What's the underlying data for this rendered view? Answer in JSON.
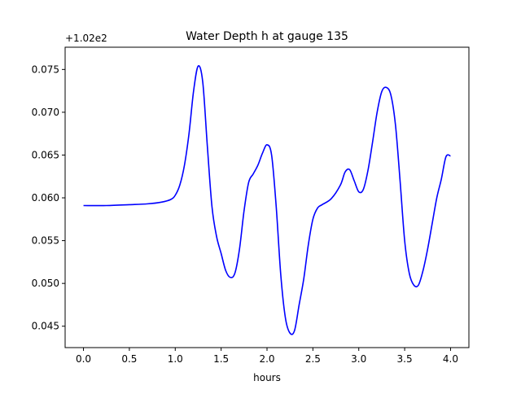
{
  "chart_data": {
    "type": "line",
    "title": "Water Depth h at gauge 135",
    "xlabel": "hours",
    "ylabel": "",
    "offset_label": "+1.02e2",
    "xlim": [
      -0.2,
      4.2
    ],
    "ylim": [
      0.0425,
      0.0776
    ],
    "xticks": [
      0.0,
      0.5,
      1.0,
      1.5,
      2.0,
      2.5,
      3.0,
      3.5,
      4.0
    ],
    "xtick_labels": [
      "0.0",
      "0.5",
      "1.0",
      "1.5",
      "2.0",
      "2.5",
      "3.0",
      "3.5",
      "4.0"
    ],
    "yticks": [
      0.045,
      0.05,
      0.055,
      0.06,
      0.065,
      0.07,
      0.075
    ],
    "ytick_labels": [
      "0.045",
      "0.050",
      "0.055",
      "0.060",
      "0.065",
      "0.070",
      "0.075"
    ],
    "grid": false,
    "line_color": "#0000ff",
    "series": [
      {
        "x": [
          0.0,
          0.25,
          0.5,
          0.7,
          0.85,
          0.95,
          1.0,
          1.05,
          1.1,
          1.15,
          1.2,
          1.25,
          1.3,
          1.35,
          1.4,
          1.45,
          1.5,
          1.55,
          1.6,
          1.65,
          1.7,
          1.75,
          1.8,
          1.85,
          1.9,
          1.95,
          2.0,
          2.05,
          2.1,
          2.15,
          2.2,
          2.25,
          2.3,
          2.35,
          2.4,
          2.45,
          2.5,
          2.55,
          2.6,
          2.7,
          2.8,
          2.85,
          2.9,
          2.95,
          3.0,
          3.05,
          3.1,
          3.15,
          3.2,
          3.25,
          3.3,
          3.35,
          3.4,
          3.45,
          3.5,
          3.55,
          3.6,
          3.65,
          3.7,
          3.75,
          3.8,
          3.85,
          3.9,
          3.95,
          4.0
        ],
        "y": [
          0.0591,
          0.0591,
          0.0592,
          0.0593,
          0.0595,
          0.0598,
          0.0603,
          0.0615,
          0.0638,
          0.0675,
          0.0725,
          0.0754,
          0.0735,
          0.066,
          0.059,
          0.0555,
          0.0535,
          0.0515,
          0.0507,
          0.0512,
          0.054,
          0.0585,
          0.0618,
          0.0628,
          0.0638,
          0.0652,
          0.0662,
          0.065,
          0.059,
          0.051,
          0.046,
          0.0442,
          0.0445,
          0.0475,
          0.0505,
          0.0545,
          0.0575,
          0.0588,
          0.0592,
          0.0599,
          0.0615,
          0.063,
          0.0633,
          0.062,
          0.0607,
          0.061,
          0.0632,
          0.0665,
          0.07,
          0.0724,
          0.0729,
          0.072,
          0.0685,
          0.062,
          0.055,
          0.0512,
          0.0498,
          0.0498,
          0.0515,
          0.054,
          0.057,
          0.06,
          0.0622,
          0.0648,
          0.0649
        ]
      }
    ]
  }
}
